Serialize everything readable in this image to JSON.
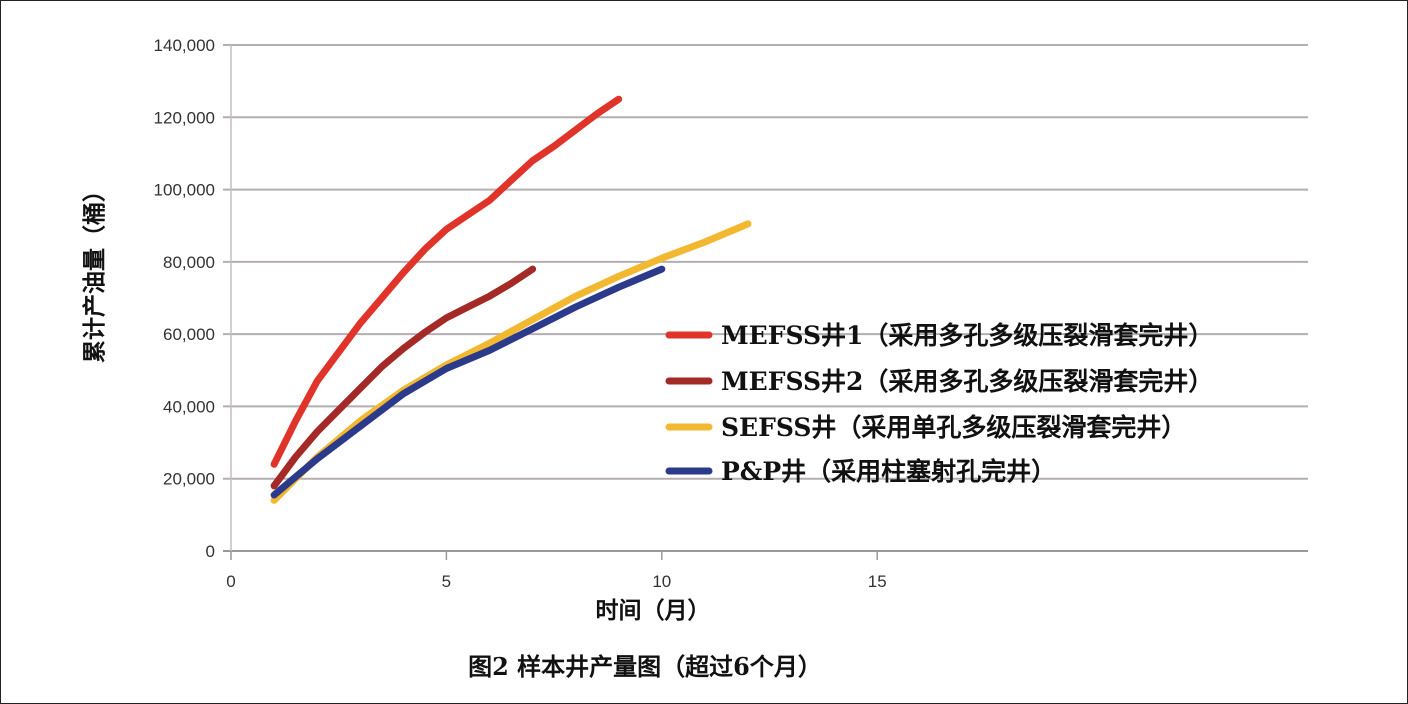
{
  "chart_data": {
    "type": "line",
    "xlabel": "时间（月）",
    "ylabel": "累计产油量（桶）",
    "xlim": [
      0,
      25
    ],
    "ylim": [
      0,
      140000
    ],
    "xticks": [
      0,
      5,
      10,
      15
    ],
    "xtick_labels": [
      "0",
      "5",
      "10",
      "15"
    ],
    "yticks": [
      0,
      20000,
      40000,
      60000,
      80000,
      100000,
      120000,
      140000
    ],
    "ytick_labels": [
      "0",
      "20,000",
      "40,000",
      "60,000",
      "80,000",
      "100,000",
      "120,000",
      "140,000"
    ],
    "grid": true,
    "legend_position": "right",
    "series": [
      {
        "name": "MEFSS井1（采用多孔多级压裂滑套完井）",
        "color": "#e0342a",
        "x": [
          1,
          1.5,
          2,
          2.5,
          3,
          3.5,
          4,
          4.5,
          5,
          5.5,
          6,
          6.5,
          7,
          7.5,
          8,
          8.5,
          9
        ],
        "y": [
          24000,
          36000,
          47000,
          55000,
          63000,
          70000,
          77000,
          83500,
          89000,
          93000,
          97000,
          102500,
          108000,
          112000,
          116500,
          121000,
          125000
        ]
      },
      {
        "name": "MEFSS井2（采用多孔多级压裂滑套完井）",
        "color": "#a32a26",
        "x": [
          1,
          1.5,
          2,
          2.5,
          3,
          3.5,
          4,
          4.5,
          5,
          5.5,
          6,
          6.5,
          7
        ],
        "y": [
          18000,
          26000,
          33000,
          39000,
          45000,
          51000,
          56000,
          60500,
          64500,
          67500,
          70500,
          74000,
          78000
        ]
      },
      {
        "name": "SEFSS井（采用单孔多级压裂滑套完井）",
        "color": "#f2b830",
        "x": [
          1,
          1.5,
          2,
          3,
          4,
          5,
          6,
          7,
          8,
          9,
          10,
          11,
          12
        ],
        "y": [
          14000,
          20000,
          26000,
          36000,
          44500,
          51500,
          57500,
          64000,
          70500,
          76000,
          81000,
          85500,
          90500
        ]
      },
      {
        "name": "P&P井（采用柱塞射孔完井）",
        "color": "#2b3a8a",
        "x": [
          1,
          1.5,
          2,
          3,
          4,
          5,
          6,
          7,
          8,
          9,
          10
        ],
        "y": [
          15500,
          20500,
          25500,
          34500,
          43500,
          50500,
          55500,
          61500,
          67500,
          73000,
          78000
        ]
      }
    ]
  },
  "caption": "图2  样本井产量图（超过6个月）"
}
